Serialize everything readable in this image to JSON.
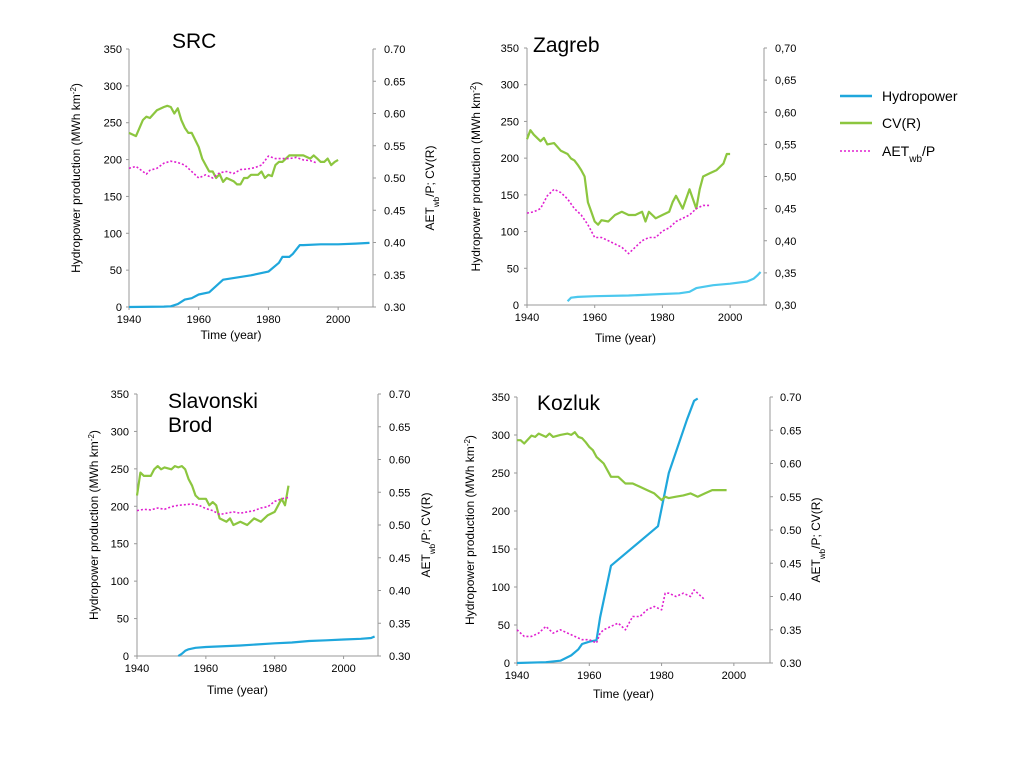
{
  "legend": {
    "hydro": {
      "label": "Hydropower",
      "color": "#1fa7dc"
    },
    "cv": {
      "label": "CV(R)",
      "color": "#8cc63f"
    },
    "aet": {
      "label": "AET",
      "sub": "wb",
      "suffix": "/P",
      "color": "#e020d0"
    }
  },
  "chart_data": [
    {
      "id": "src",
      "type": "line",
      "title": "SRC",
      "xlabel": "Time (year)",
      "ylabel_left": {
        "main": "Hydropower production (MWh km",
        "sup": "-2",
        "end": ")"
      },
      "ylabel_right": {
        "pre": "AET",
        "sub": "wb",
        "post": "/P; CV(R)"
      },
      "xlim": [
        1940,
        2010
      ],
      "ylim_left": [
        0,
        350
      ],
      "ylim_right": [
        0.3,
        0.7
      ],
      "xticks": [
        "1940",
        "1960",
        "1980",
        "2000"
      ],
      "yticks_left": [
        "0",
        "50",
        "100",
        "150",
        "200",
        "250",
        "300",
        "350"
      ],
      "yticks_right": [
        "0.30",
        "0.35",
        "0.40",
        "0.45",
        "0.50",
        "0.55",
        "0.60",
        "0.65",
        "0.70"
      ],
      "series": [
        {
          "key": "hydro",
          "axis": "left",
          "x": [
            1940,
            1950,
            1952,
            1954,
            1956,
            1958,
            1960,
            1963,
            1967,
            1975,
            1980,
            1983,
            1984,
            1986,
            1987,
            1989,
            1990,
            1995,
            2000,
            2005,
            2009
          ],
          "y": [
            0,
            0.5,
            1,
            4,
            10,
            12,
            17,
            20,
            37,
            43,
            48,
            60,
            68,
            68,
            72,
            84,
            84,
            85,
            85,
            86,
            87
          ]
        },
        {
          "key": "cv",
          "axis": "right",
          "x": [
            1940,
            1942,
            1944,
            1945,
            1946,
            1948,
            1950,
            1951,
            1952,
            1953,
            1954,
            1955,
            1956,
            1957,
            1958,
            1960,
            1961,
            1962,
            1963,
            1964,
            1965,
            1966,
            1967,
            1968,
            1970,
            1971,
            1972,
            1973,
            1974,
            1975,
            1977,
            1978,
            1979,
            1980,
            1981,
            1982,
            1983,
            1984,
            1986,
            1988,
            1990,
            1992,
            1993,
            1994,
            1995,
            1996,
            1997,
            1998,
            1999,
            2000
          ],
          "y": [
            0.57,
            0.565,
            0.59,
            0.595,
            0.593,
            0.605,
            0.61,
            0.612,
            0.61,
            0.6,
            0.608,
            0.59,
            0.578,
            0.57,
            0.57,
            0.548,
            0.53,
            0.52,
            0.51,
            0.51,
            0.5,
            0.506,
            0.494,
            0.5,
            0.495,
            0.49,
            0.49,
            0.5,
            0.5,
            0.505,
            0.505,
            0.51,
            0.5,
            0.505,
            0.503,
            0.52,
            0.525,
            0.525,
            0.535,
            0.535,
            0.535,
            0.53,
            0.535,
            0.53,
            0.525,
            0.525,
            0.53,
            0.52,
            0.525,
            0.528
          ]
        },
        {
          "key": "aet",
          "axis": "right",
          "x": [
            1940,
            1942,
            1944,
            1945,
            1946,
            1948,
            1950,
            1952,
            1954,
            1956,
            1958,
            1960,
            1962,
            1964,
            1966,
            1968,
            1970,
            1972,
            1974,
            1976,
            1978,
            1980,
            1982,
            1984,
            1986,
            1988,
            1990,
            1992,
            1994
          ],
          "y": [
            0.515,
            0.518,
            0.51,
            0.506,
            0.512,
            0.515,
            0.523,
            0.526,
            0.524,
            0.52,
            0.51,
            0.5,
            0.505,
            0.5,
            0.508,
            0.51,
            0.507,
            0.513,
            0.514,
            0.516,
            0.52,
            0.534,
            0.53,
            0.53,
            0.53,
            0.532,
            0.528,
            0.527,
            0.523
          ]
        }
      ]
    },
    {
      "id": "zagreb",
      "type": "line",
      "title": "Zagreb",
      "xlabel": "Time (year)",
      "ylabel_left": {
        "main": "Hydropower production (MWh km",
        "sup": "-2",
        "end": ")"
      },
      "ylabel_right": null,
      "xlim": [
        1940,
        2010
      ],
      "ylim_left": [
        0,
        350
      ],
      "ylim_right": [
        0.3,
        0.7
      ],
      "xticks": [
        "1940",
        "1960",
        "1980",
        "2000"
      ],
      "yticks_left": [
        "0",
        "50",
        "100",
        "150",
        "200",
        "250",
        "300",
        "350"
      ],
      "yticks_right": [
        "0,30",
        "0,35",
        "0,40",
        "0,45",
        "0,50",
        "0,55",
        "0,60",
        "0,65",
        "0,70"
      ],
      "series": [
        {
          "key": "hydro",
          "axis": "left",
          "x": [
            1952,
            1953,
            1955,
            1960,
            1970,
            1980,
            1985,
            1988,
            1990,
            1995,
            2000,
            2005,
            2007,
            2008,
            2009
          ],
          "y": [
            5,
            10,
            11,
            12,
            13,
            15,
            16,
            18,
            23,
            27,
            29,
            32,
            36,
            40,
            45
          ]
        },
        {
          "key": "cv",
          "axis": "right",
          "x": [
            1940,
            1941,
            1942,
            1944,
            1945,
            1946,
            1948,
            1950,
            1952,
            1953,
            1954,
            1955,
            1956,
            1957,
            1958,
            1959,
            1960,
            1961,
            1962,
            1964,
            1966,
            1968,
            1970,
            1972,
            1974,
            1975,
            1976,
            1977,
            1978,
            1980,
            1982,
            1983,
            1984,
            1986,
            1988,
            1990,
            1991,
            1992,
            1994,
            1996,
            1998,
            1999,
            2000
          ],
          "y": [
            0.558,
            0.572,
            0.565,
            0.555,
            0.56,
            0.55,
            0.552,
            0.54,
            0.535,
            0.528,
            0.525,
            0.518,
            0.51,
            0.5,
            0.46,
            0.445,
            0.43,
            0.425,
            0.432,
            0.43,
            0.44,
            0.445,
            0.44,
            0.44,
            0.445,
            0.43,
            0.445,
            0.44,
            0.435,
            0.44,
            0.445,
            0.46,
            0.47,
            0.45,
            0.48,
            0.45,
            0.48,
            0.5,
            0.505,
            0.51,
            0.52,
            0.535,
            0.535
          ]
        },
        {
          "key": "aet",
          "axis": "right",
          "x": [
            1940,
            1942,
            1944,
            1946,
            1948,
            1950,
            1952,
            1954,
            1956,
            1958,
            1960,
            1962,
            1964,
            1966,
            1968,
            1970,
            1972,
            1974,
            1976,
            1978,
            1980,
            1982,
            1984,
            1986,
            1988,
            1990,
            1992,
            1994
          ],
          "y": [
            0.443,
            0.445,
            0.45,
            0.47,
            0.48,
            0.475,
            0.465,
            0.45,
            0.44,
            0.425,
            0.405,
            0.405,
            0.4,
            0.395,
            0.39,
            0.38,
            0.39,
            0.4,
            0.405,
            0.405,
            0.415,
            0.42,
            0.43,
            0.435,
            0.44,
            0.45,
            0.455,
            0.455
          ]
        }
      ]
    },
    {
      "id": "slavonski",
      "type": "line",
      "title": "Slavonski\nBrod",
      "title_lines": [
        "Slavonski",
        "Brod"
      ],
      "xlabel": "Time (year)",
      "ylabel_left": {
        "main": "Hydropower production (MWh km",
        "sup": "-2",
        "end": ")"
      },
      "ylabel_right": {
        "pre": "AET",
        "sub": "wb",
        "post": "/P; CV(R)"
      },
      "xlim": [
        1940,
        2010
      ],
      "ylim_left": [
        0,
        350
      ],
      "ylim_right": [
        0.3,
        0.7
      ],
      "xticks": [
        "1940",
        "1960",
        "1980",
        "2000"
      ],
      "yticks_left": [
        "0",
        "50",
        "100",
        "150",
        "200",
        "250",
        "300",
        "350"
      ],
      "yticks_right": [
        "0.30",
        "0.35",
        "0.40",
        "0.45",
        "0.50",
        "0.55",
        "0.60",
        "0.65",
        "0.70"
      ],
      "series": [
        {
          "key": "hydro",
          "axis": "left",
          "x": [
            1952,
            1953,
            1954,
            1955,
            1957,
            1960,
            1970,
            1980,
            1985,
            1990,
            1995,
            2000,
            2005,
            2008,
            2009
          ],
          "y": [
            0,
            3,
            7,
            9,
            11,
            12,
            14,
            17,
            18,
            20,
            21,
            22,
            23,
            24,
            26
          ]
        },
        {
          "key": "cv",
          "axis": "right",
          "x": [
            1940,
            1941,
            1942,
            1944,
            1945,
            1946,
            1947,
            1948,
            1950,
            1951,
            1952,
            1953,
            1954,
            1955,
            1956,
            1957,
            1958,
            1960,
            1961,
            1962,
            1963,
            1964,
            1966,
            1967,
            1968,
            1970,
            1972,
            1974,
            1976,
            1978,
            1980,
            1982,
            1983,
            1984
          ],
          "y": [
            0.545,
            0.58,
            0.575,
            0.575,
            0.585,
            0.59,
            0.585,
            0.588,
            0.585,
            0.59,
            0.588,
            0.59,
            0.585,
            0.57,
            0.56,
            0.545,
            0.54,
            0.54,
            0.53,
            0.535,
            0.53,
            0.51,
            0.505,
            0.51,
            0.5,
            0.505,
            0.5,
            0.51,
            0.505,
            0.515,
            0.52,
            0.54,
            0.53,
            0.56
          ]
        },
        {
          "key": "aet",
          "axis": "right",
          "x": [
            1940,
            1942,
            1944,
            1946,
            1948,
            1950,
            1952,
            1954,
            1956,
            1958,
            1960,
            1962,
            1964,
            1966,
            1968,
            1970,
            1972,
            1974,
            1976,
            1978,
            1980,
            1982,
            1984
          ],
          "y": [
            0.522,
            0.524,
            0.523,
            0.526,
            0.524,
            0.528,
            0.53,
            0.531,
            0.532,
            0.53,
            0.525,
            0.522,
            0.516,
            0.518,
            0.52,
            0.518,
            0.52,
            0.522,
            0.526,
            0.528,
            0.536,
            0.54,
            0.542
          ]
        }
      ]
    },
    {
      "id": "kozluk",
      "type": "line",
      "title": "Kozluk",
      "xlabel": "Time (year)",
      "ylabel_left": {
        "main": "Hydropower production (MWh km",
        "sup": "-2",
        "end": ")"
      },
      "ylabel_right": {
        "pre": "AET",
        "sub": "wb",
        "post": "/P; CV(R)"
      },
      "xlim": [
        1940,
        2010
      ],
      "ylim_left": [
        0,
        350
      ],
      "ylim_right": [
        0.3,
        0.7
      ],
      "xticks": [
        "1940",
        "1960",
        "1980",
        "2000"
      ],
      "yticks_left": [
        "0",
        "50",
        "100",
        "150",
        "200",
        "250",
        "300",
        "350"
      ],
      "yticks_right": [
        "0.30",
        "0.35",
        "0.40",
        "0.45",
        "0.50",
        "0.55",
        "0.60",
        "0.65",
        "0.70"
      ],
      "series": [
        {
          "key": "hydro",
          "axis": "left",
          "x": [
            1940,
            1948,
            1952,
            1955,
            1957,
            1958,
            1960,
            1962,
            1963,
            1966,
            1979,
            1982,
            1987,
            1989,
            1990
          ],
          "y": [
            0,
            1,
            3,
            10,
            18,
            25,
            28,
            30,
            60,
            128,
            180,
            250,
            320,
            345,
            348
          ]
        },
        {
          "key": "cv",
          "axis": "right",
          "x": [
            1940,
            1941,
            1942,
            1944,
            1945,
            1946,
            1948,
            1949,
            1950,
            1952,
            1954,
            1955,
            1956,
            1957,
            1958,
            1959,
            1960,
            1961,
            1962,
            1963,
            1964,
            1966,
            1968,
            1970,
            1972,
            1974,
            1976,
            1978,
            1980,
            1981,
            1982,
            1984,
            1986,
            1988,
            1990,
            1992,
            1994,
            1996,
            1998
          ],
          "y": [
            0.635,
            0.635,
            0.63,
            0.642,
            0.64,
            0.645,
            0.64,
            0.645,
            0.64,
            0.643,
            0.645,
            0.643,
            0.647,
            0.64,
            0.638,
            0.632,
            0.625,
            0.62,
            0.61,
            0.605,
            0.6,
            0.58,
            0.58,
            0.57,
            0.57,
            0.565,
            0.56,
            0.555,
            0.545,
            0.55,
            0.548,
            0.55,
            0.552,
            0.555,
            0.55,
            0.555,
            0.56,
            0.56,
            0.56
          ]
        },
        {
          "key": "aet",
          "axis": "right",
          "x": [
            1940,
            1941,
            1942,
            1944,
            1946,
            1948,
            1949,
            1950,
            1952,
            1954,
            1956,
            1958,
            1960,
            1962,
            1963,
            1964,
            1966,
            1968,
            1970,
            1972,
            1974,
            1976,
            1978,
            1980,
            1981,
            1982,
            1984,
            1986,
            1988,
            1989,
            1990,
            1991,
            1992
          ],
          "y": [
            0.35,
            0.345,
            0.34,
            0.34,
            0.345,
            0.355,
            0.35,
            0.345,
            0.35,
            0.345,
            0.34,
            0.335,
            0.335,
            0.33,
            0.345,
            0.35,
            0.355,
            0.36,
            0.35,
            0.37,
            0.37,
            0.38,
            0.385,
            0.38,
            0.405,
            0.405,
            0.4,
            0.405,
            0.4,
            0.41,
            0.405,
            0.4,
            0.395
          ]
        }
      ]
    }
  ]
}
